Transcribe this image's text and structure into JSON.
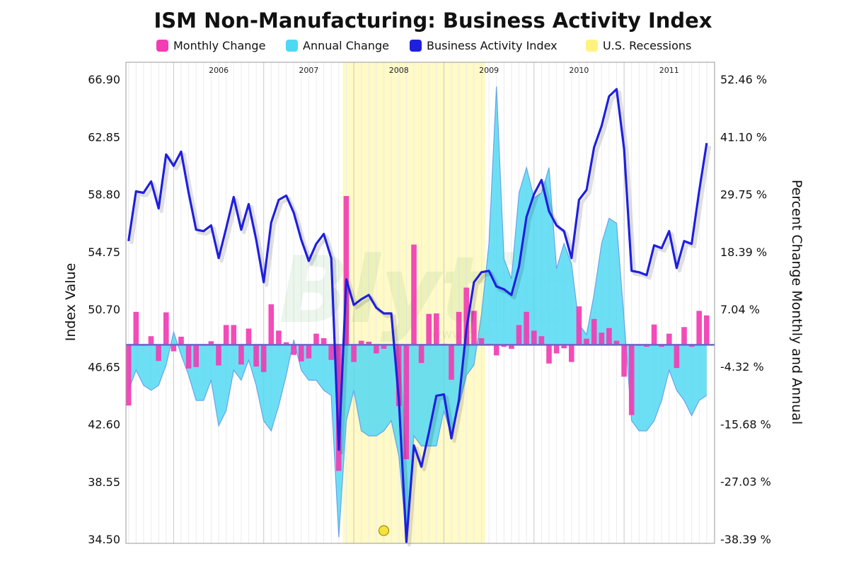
{
  "chart_data": {
    "type": "line",
    "title": "ISM Non-Manufacturing: Business Activity Index",
    "ylabel": "Index Value",
    "ylabel_right": "Percent Change Monthly and Annual",
    "yticks_left": [
      "66.90",
      "62.85",
      "58.80",
      "54.75",
      "50.70",
      "46.65",
      "42.60",
      "38.55",
      "34.50"
    ],
    "yticks_right": [
      "52.46 %",
      "41.10 %",
      "29.75 %",
      "18.39 %",
      "7.04 %",
      "-4.32 %",
      "-15.68 %",
      "-27.03 %",
      "-38.39 %"
    ],
    "ylim_left": [
      34.5,
      66.9
    ],
    "ylim_right": [
      -38.39,
      52.46
    ],
    "year_labels": [
      "2006",
      "2007",
      "2008",
      "2009",
      "2010",
      "2011"
    ],
    "x_start": "2005-07",
    "x_end": "2011-12",
    "recession": {
      "start": "2007-12",
      "end": "2009-06"
    },
    "legend": [
      {
        "label": "Monthly Change",
        "color": "#f23cb3"
      },
      {
        "label": "Annual Change",
        "color": "#4dd8f3"
      },
      {
        "label": "Business Activity Index",
        "color": "#1f1fe0"
      },
      {
        "label": "U.S. Recessions",
        "color": "#fff380"
      }
    ],
    "watermark": "Blytic",
    "watermark_url": "www.blytic.com",
    "series": [
      {
        "name": "Business Activity Index",
        "x": [
          "2005-07",
          "2005-08",
          "2005-09",
          "2005-10",
          "2005-11",
          "2005-12",
          "2006-01",
          "2006-02",
          "2006-03",
          "2006-04",
          "2006-05",
          "2006-06",
          "2006-07",
          "2006-08",
          "2006-09",
          "2006-10",
          "2006-11",
          "2006-12",
          "2007-01",
          "2007-02",
          "2007-03",
          "2007-04",
          "2007-05",
          "2007-06",
          "2007-07",
          "2007-08",
          "2007-09",
          "2007-10",
          "2007-11",
          "2007-12",
          "2008-01",
          "2008-02",
          "2008-03",
          "2008-04",
          "2008-05",
          "2008-06",
          "2008-07",
          "2008-08",
          "2008-09",
          "2008-10",
          "2008-11",
          "2008-12",
          "2009-01",
          "2009-02",
          "2009-03",
          "2009-04",
          "2009-05",
          "2009-06",
          "2009-07",
          "2009-08",
          "2009-09",
          "2009-10",
          "2009-11",
          "2009-12",
          "2010-01",
          "2010-02",
          "2010-03",
          "2010-04",
          "2010-05",
          "2010-06",
          "2010-07",
          "2010-08",
          "2010-09",
          "2010-10",
          "2010-11",
          "2010-12",
          "2011-01",
          "2011-02",
          "2011-03",
          "2011-04",
          "2011-05",
          "2011-06",
          "2011-07",
          "2011-08",
          "2011-09",
          "2011-10",
          "2011-11",
          "2011-12"
        ],
        "values": [
          55.5,
          59.0,
          58.9,
          59.7,
          57.8,
          61.6,
          60.8,
          61.8,
          58.9,
          56.3,
          56.2,
          56.6,
          54.3,
          56.4,
          58.6,
          56.3,
          58.1,
          55.6,
          52.6,
          56.8,
          58.4,
          58.7,
          57.5,
          55.6,
          54.1,
          55.3,
          56.0,
          54.3,
          40.8,
          52.8,
          51.0,
          51.4,
          51.7,
          50.8,
          50.4,
          50.4,
          44.3,
          34.3,
          41.1,
          39.6,
          42.0,
          44.6,
          44.7,
          41.6,
          44.3,
          49.3,
          52.6,
          53.3,
          53.4,
          52.3,
          52.1,
          51.7,
          53.7,
          57.2,
          58.8,
          59.8,
          57.6,
          56.6,
          56.2,
          54.3,
          58.4,
          59.1,
          62.1,
          63.6,
          65.7,
          66.2,
          62.0,
          53.4,
          53.3,
          53.1,
          55.2,
          55.0,
          56.2,
          53.6,
          55.5,
          55.3,
          59.0,
          62.4
        ]
      },
      {
        "name": "Monthly Change",
        "values": [
          -12.0,
          6.5,
          -0.2,
          1.7,
          -3.2,
          6.4,
          -1.3,
          1.6,
          -4.7,
          -4.4,
          -0.2,
          0.7,
          -4.1,
          3.9,
          3.9,
          -3.9,
          3.2,
          -4.3,
          -5.4,
          8.0,
          2.8,
          0.5,
          -2.0,
          -3.3,
          -2.7,
          2.2,
          1.3,
          -3.0,
          -24.9,
          29.4,
          -3.4,
          0.8,
          0.6,
          -1.7,
          -0.8,
          0.0,
          -12.1,
          -22.6,
          19.8,
          -3.6,
          6.1,
          6.2,
          0.2,
          -6.9,
          6.5,
          11.3,
          6.7,
          1.3,
          0.2,
          -2.1,
          -0.4,
          -0.8,
          3.9,
          6.5,
          2.8,
          1.7,
          -3.7,
          -1.7,
          -0.7,
          -3.4,
          7.6,
          1.2,
          5.1,
          2.4,
          3.3,
          0.8,
          -6.3,
          -13.9,
          -0.2,
          -0.4,
          4.0,
          -0.4,
          2.2,
          -4.6,
          3.5,
          -0.4,
          6.7,
          5.8
        ]
      },
      {
        "name": "Annual Change",
        "values": [
          -9.0,
          -5.0,
          -8.0,
          -9.0,
          -8.0,
          -4.0,
          2.5,
          -2.0,
          -6.0,
          -11.0,
          -11.0,
          -7.0,
          -16.0,
          -13.0,
          -5.0,
          -7.0,
          -3.0,
          -8.0,
          -15.0,
          -17.0,
          -12.0,
          -6.0,
          1.0,
          -5.0,
          -7.0,
          -7.0,
          -9.0,
          -10.0,
          -38.0,
          -15.0,
          -9.0,
          -17.0,
          -18.0,
          -18.0,
          -17.0,
          -15.0,
          -22.0,
          -38.0,
          -18.0,
          -20.0,
          -20.0,
          -20.0,
          -13.0,
          -18.0,
          -12.0,
          -6.0,
          -4.0,
          6.0,
          20.0,
          51.0,
          17.0,
          13.0,
          30.0,
          35.0,
          29.0,
          30.0,
          35.0,
          15.0,
          20.0,
          16.0,
          4.0,
          2.0,
          10.0,
          20.0,
          25.0,
          24.0,
          5.0,
          -15.0,
          -17.0,
          -17.0,
          -15.0,
          -11.0,
          -5.0,
          -9.0,
          -11.0,
          -14.0,
          -11.0,
          -10.0
        ]
      }
    ]
  }
}
